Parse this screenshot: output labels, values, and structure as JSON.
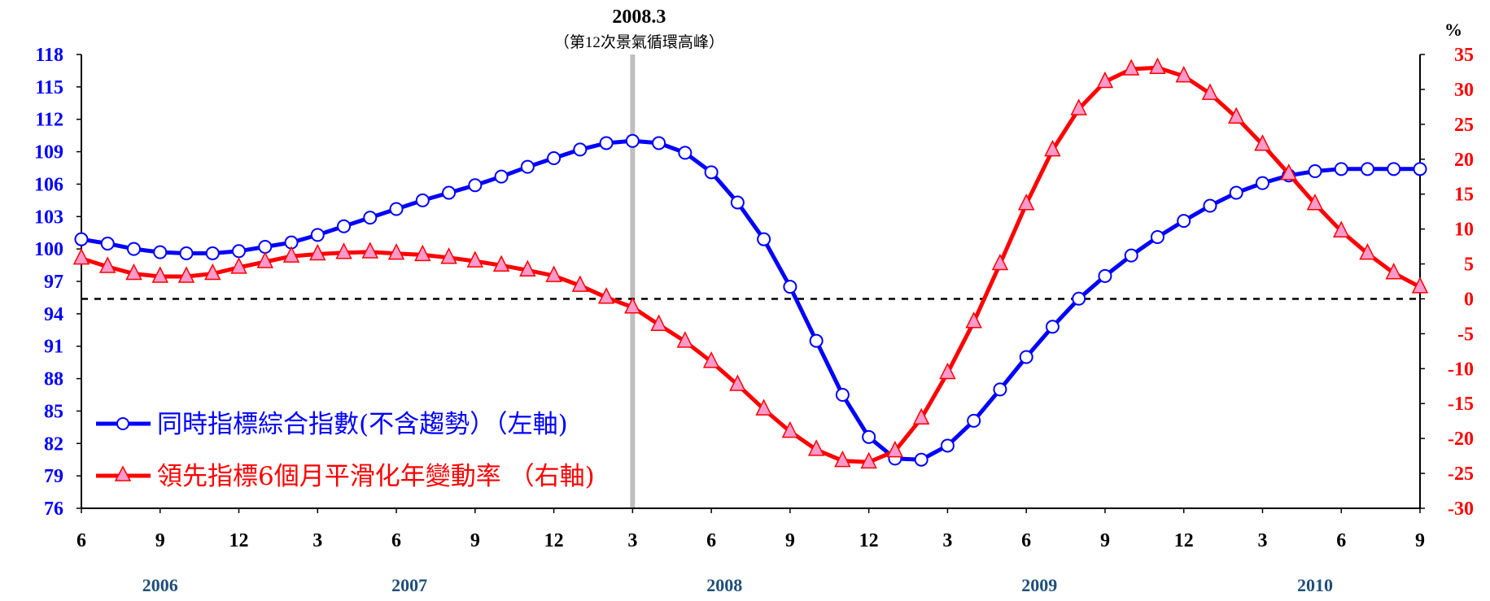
{
  "chart_data": {
    "type": "line",
    "peak_marker": {
      "date_label": "2008.3",
      "note": "（第12次景氣循環高峰）",
      "x_value": "2008-03",
      "color": "#bfbfbf"
    },
    "left_axis": {
      "color": "#0000ff",
      "ylim": [
        76,
        118
      ],
      "ticks": [
        "118",
        "115",
        "112",
        "109",
        "106",
        "103",
        "100",
        "97",
        "94",
        "91",
        "88",
        "85",
        "82",
        "79",
        "76"
      ]
    },
    "right_axis": {
      "color": "#ff0000",
      "unit": "%",
      "ylim": [
        -30,
        35
      ],
      "ticks": [
        "35",
        "30",
        "25",
        "20",
        "15",
        "10",
        "5",
        "0",
        "-5",
        "-10",
        "-15",
        "-20",
        "-25",
        "-30"
      ]
    },
    "x_ticks": [
      "6",
      "9",
      "12",
      "3",
      "6",
      "9",
      "12",
      "3",
      "6",
      "9",
      "12",
      "3",
      "6",
      "9",
      "12",
      "3",
      "6",
      "9"
    ],
    "years": [
      "2006",
      "2007",
      "2008",
      "2009",
      "2010"
    ],
    "x_range": [
      "2006-06",
      "2010-09"
    ],
    "zero_line": {
      "value": 0,
      "axis": "right",
      "style": "dashed"
    },
    "series": [
      {
        "name": "同時指標綜合指數(不含趨勢）（左軸)",
        "axis": "left",
        "color": "#0000ff",
        "marker": "circle",
        "x": [
          "2006-06",
          "2006-07",
          "2006-08",
          "2006-09",
          "2006-10",
          "2006-11",
          "2006-12",
          "2007-01",
          "2007-02",
          "2007-03",
          "2007-04",
          "2007-05",
          "2007-06",
          "2007-07",
          "2007-08",
          "2007-09",
          "2007-10",
          "2007-11",
          "2007-12",
          "2008-01",
          "2008-02",
          "2008-03",
          "2008-04",
          "2008-05",
          "2008-06",
          "2008-07",
          "2008-08",
          "2008-09",
          "2008-10",
          "2008-11",
          "2008-12",
          "2009-01",
          "2009-02",
          "2009-03",
          "2009-04",
          "2009-05",
          "2009-06",
          "2009-07",
          "2009-08",
          "2009-09",
          "2009-10",
          "2009-11",
          "2009-12",
          "2010-01",
          "2010-02",
          "2010-03",
          "2010-04",
          "2010-05",
          "2010-06",
          "2010-07",
          "2010-08",
          "2010-09"
        ],
        "values": [
          100.9,
          100.5,
          100.0,
          99.7,
          99.6,
          99.6,
          99.8,
          100.2,
          100.6,
          101.3,
          102.1,
          102.9,
          103.7,
          104.5,
          105.2,
          105.9,
          106.7,
          107.6,
          108.4,
          109.2,
          109.8,
          110.0,
          109.8,
          108.9,
          107.1,
          104.3,
          100.9,
          96.5,
          91.5,
          86.5,
          82.6,
          80.6,
          80.5,
          81.8,
          84.1,
          87.0,
          90.0,
          92.8,
          95.4,
          97.5,
          99.4,
          101.1,
          102.6,
          104.0,
          105.2,
          106.1,
          106.8,
          107.2,
          107.4,
          107.4,
          107.4,
          107.4
        ]
      },
      {
        "name": "領先指標6個月平滑化年變動率 （右軸)",
        "axis": "right",
        "color": "#ff0000",
        "marker": "triangle",
        "marker_fill": "#ff99cc",
        "x": [
          "2006-06",
          "2006-07",
          "2006-08",
          "2006-09",
          "2006-10",
          "2006-11",
          "2006-12",
          "2007-01",
          "2007-02",
          "2007-03",
          "2007-04",
          "2007-05",
          "2007-06",
          "2007-07",
          "2007-08",
          "2007-09",
          "2007-10",
          "2007-11",
          "2007-12",
          "2008-01",
          "2008-02",
          "2008-03",
          "2008-04",
          "2008-05",
          "2008-06",
          "2008-07",
          "2008-08",
          "2008-09",
          "2008-10",
          "2008-11",
          "2008-12",
          "2009-01",
          "2009-02",
          "2009-03",
          "2009-04",
          "2009-05",
          "2009-06",
          "2009-07",
          "2009-08",
          "2009-09",
          "2009-10",
          "2009-11",
          "2009-12",
          "2010-01",
          "2010-02",
          "2010-03",
          "2010-04",
          "2010-05",
          "2010-06",
          "2010-07",
          "2010-08",
          "2010-09"
        ],
        "values": [
          5.8,
          4.6,
          3.6,
          3.2,
          3.2,
          3.6,
          4.5,
          5.3,
          6.1,
          6.4,
          6.6,
          6.7,
          6.5,
          6.3,
          5.9,
          5.4,
          4.8,
          4.1,
          3.3,
          1.9,
          0.2,
          -1.2,
          -3.7,
          -6.1,
          -9.0,
          -12.3,
          -15.8,
          -19.0,
          -21.6,
          -23.2,
          -23.4,
          -21.8,
          -17.1,
          -10.6,
          -3.3,
          5.0,
          13.6,
          21.3,
          27.2,
          31.1,
          32.9,
          33.1,
          31.9,
          29.4,
          26.0,
          22.1,
          17.9,
          13.6,
          9.7,
          6.5,
          3.7,
          1.7
        ]
      }
    ]
  }
}
